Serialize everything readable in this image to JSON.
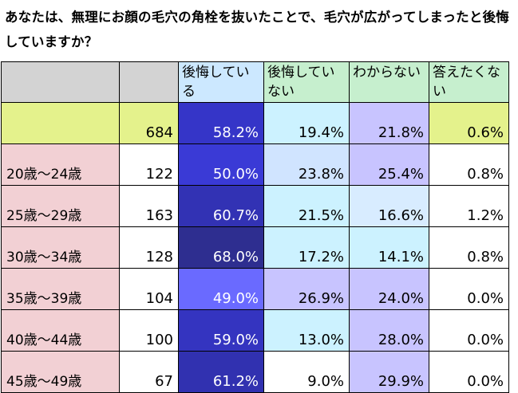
{
  "title": "あなたは、無理にお顔の毛穴の角栓を抜いたことで、毛穴が広がってしまったと後悔していますか？",
  "headers": [
    "",
    "",
    "後悔している",
    "後悔していない",
    "わからない",
    "答えたくない"
  ],
  "header_colors": [
    "#d3d3d3",
    "#d3d3d3",
    "#cce8ff",
    "#c6efce",
    "#c6efce",
    "#c6efce"
  ],
  "rows": [
    {
      "label": "",
      "n": "684",
      "v": [
        "58.2%",
        "19.4%",
        "21.8%",
        "0.6%"
      ],
      "colors": [
        "#e4f28c",
        "#e4f28c",
        "#3535c8",
        "#ccf2ff",
        "#c8c4ff",
        "#e4f28c"
      ],
      "white": [
        false,
        false,
        true,
        false,
        false,
        false
      ]
    },
    {
      "label": "20歳〜24歳",
      "n": "122",
      "v": [
        "50.0%",
        "23.8%",
        "25.4%",
        "0.8%"
      ],
      "colors": [
        "#f2d0d4",
        "#ffffff",
        "#3a3ad6",
        "#d0e4ff",
        "#c8c4ff",
        "#ffffff"
      ],
      "white": [
        false,
        false,
        true,
        false,
        false,
        false
      ]
    },
    {
      "label": "25歳〜29歳",
      "n": "163",
      "v": [
        "60.7%",
        "21.5%",
        "16.6%",
        "1.2%"
      ],
      "colors": [
        "#f2d0d4",
        "#ffffff",
        "#3232b4",
        "#ccf2ff",
        "#d8ecff",
        "#ffffff"
      ],
      "white": [
        false,
        false,
        true,
        false,
        false,
        false
      ]
    },
    {
      "label": "30歳〜34歳",
      "n": "128",
      "v": [
        "68.0%",
        "17.2%",
        "14.1%",
        "0.8%"
      ],
      "colors": [
        "#f2d0d4",
        "#ffffff",
        "#2e2e90",
        "#ccf2ff",
        "#ccf2ff",
        "#ffffff"
      ],
      "white": [
        false,
        false,
        true,
        false,
        false,
        false
      ]
    },
    {
      "label": "35歳〜39歳",
      "n": "104",
      "v": [
        "49.0%",
        "26.9%",
        "24.0%",
        "0.0%"
      ],
      "colors": [
        "#f2d0d4",
        "#ffffff",
        "#6a6aff",
        "#c8c4ff",
        "#c8c4ff",
        "#ffffff"
      ],
      "white": [
        false,
        false,
        true,
        false,
        false,
        false
      ]
    },
    {
      "label": "40歳〜44歳",
      "n": "100",
      "v": [
        "59.0%",
        "13.0%",
        "28.0%",
        "0.0%"
      ],
      "colors": [
        "#f2d0d4",
        "#ffffff",
        "#3434c0",
        "#ccf2ff",
        "#c8c4ff",
        "#ffffff"
      ],
      "white": [
        false,
        false,
        true,
        false,
        false,
        false
      ]
    },
    {
      "label": "45歳〜49歳",
      "n": "67",
      "v": [
        "61.2%",
        "9.0%",
        "29.9%",
        "0.0%"
      ],
      "colors": [
        "#f2d0d4",
        "#ffffff",
        "#3131b0",
        "#ffffff",
        "#c8c4ff",
        "#ffffff"
      ],
      "white": [
        false,
        false,
        true,
        false,
        false,
        false
      ]
    }
  ]
}
